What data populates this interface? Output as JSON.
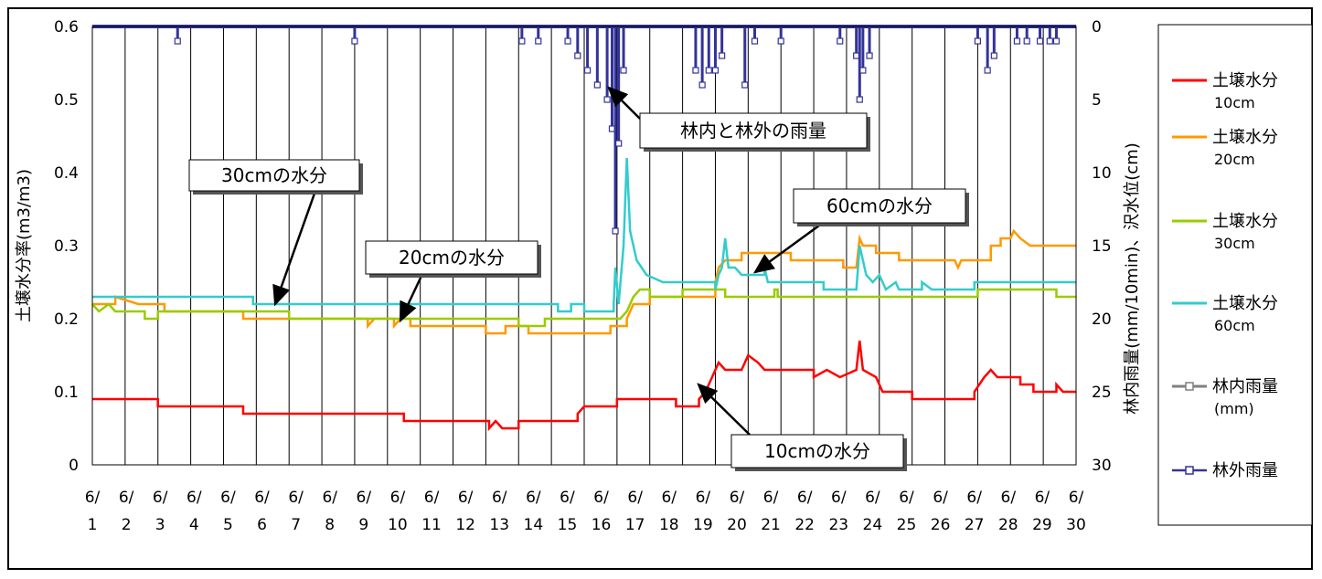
{
  "chart_data": {
    "type": "line",
    "ylabel_left": "土壌水分率(m3/m3)",
    "ylabel_right": "林内雨量(mm/10min)、沢水位(cm)",
    "ylim_left": [
      0,
      0.6
    ],
    "ylim_right_inverted": [
      0,
      30
    ],
    "yticks_left": [
      "0.6",
      "0.5",
      "0.4",
      "0.3",
      "0.2",
      "0.1",
      "0"
    ],
    "yticks_right": [
      "0",
      "5",
      "10",
      "15",
      "20",
      "25",
      "30"
    ],
    "xticks_top": [
      "6/",
      "6/",
      "6/",
      "6/",
      "6/",
      "6/",
      "6/",
      "6/",
      "6/",
      "6/",
      "6/",
      "6/",
      "6/",
      "6/",
      "6/",
      "6/",
      "6/",
      "6/",
      "6/",
      "6/",
      "6/",
      "6/",
      "6/",
      "6/",
      "6/",
      "6/",
      "6/",
      "6/",
      "6/",
      "6/"
    ],
    "xticks_bottom": [
      "1",
      "2",
      "3",
      "4",
      "5",
      "6",
      "7",
      "8",
      "9",
      "10",
      "11",
      "12",
      "13",
      "14",
      "15",
      "16",
      "17",
      "18",
      "19",
      "20",
      "21",
      "22",
      "23",
      "24",
      "25",
      "26",
      "27",
      "28",
      "29",
      "30"
    ],
    "grid": "vertical",
    "legend_position": "right",
    "series": [
      {
        "name": "土壌水分",
        "sub": "10cm",
        "color": "#ff0000",
        "points": [
          [
            1,
            0.09
          ],
          [
            3,
            0.09
          ],
          [
            3,
            0.08
          ],
          [
            5.6,
            0.08
          ],
          [
            5.6,
            0.07
          ],
          [
            10.5,
            0.07
          ],
          [
            10.5,
            0.06
          ],
          [
            13.1,
            0.06
          ],
          [
            13.1,
            0.05
          ],
          [
            13.3,
            0.06
          ],
          [
            13.5,
            0.05
          ],
          [
            14,
            0.05
          ],
          [
            14,
            0.06
          ],
          [
            15.8,
            0.06
          ],
          [
            15.8,
            0.07
          ],
          [
            16,
            0.08
          ],
          [
            17,
            0.08
          ],
          [
            17,
            0.09
          ],
          [
            18.8,
            0.09
          ],
          [
            18.8,
            0.08
          ],
          [
            19.5,
            0.08
          ],
          [
            19.5,
            0.09
          ],
          [
            19.7,
            0.1
          ],
          [
            19.9,
            0.12
          ],
          [
            20.1,
            0.14
          ],
          [
            20.3,
            0.13
          ],
          [
            20.8,
            0.13
          ],
          [
            21,
            0.15
          ],
          [
            21.3,
            0.14
          ],
          [
            21.5,
            0.13
          ],
          [
            23,
            0.13
          ],
          [
            23,
            0.12
          ],
          [
            23.4,
            0.13
          ],
          [
            23.8,
            0.12
          ],
          [
            24.3,
            0.13
          ],
          [
            24.4,
            0.17
          ],
          [
            24.5,
            0.13
          ],
          [
            24.9,
            0.12
          ],
          [
            25.1,
            0.1
          ],
          [
            26,
            0.1
          ],
          [
            26,
            0.09
          ],
          [
            27.9,
            0.09
          ],
          [
            27.9,
            0.1
          ],
          [
            28.2,
            0.12
          ],
          [
            28.4,
            0.13
          ],
          [
            28.6,
            0.12
          ],
          [
            29.3,
            0.12
          ],
          [
            29.3,
            0.11
          ],
          [
            29.7,
            0.11
          ],
          [
            29.7,
            0.1
          ],
          [
            30.4,
            0.1
          ],
          [
            30.4,
            0.11
          ],
          [
            30.6,
            0.1
          ],
          [
            31,
            0.1
          ]
        ]
      },
      {
        "name": "土壌水分",
        "sub": "20cm",
        "color": "#ff9900",
        "points": [
          [
            1,
            0.22
          ],
          [
            1.7,
            0.22
          ],
          [
            1.7,
            0.23
          ],
          [
            2.4,
            0.22
          ],
          [
            3.2,
            0.22
          ],
          [
            3.2,
            0.21
          ],
          [
            5.6,
            0.21
          ],
          [
            5.6,
            0.2
          ],
          [
            9.4,
            0.2
          ],
          [
            9.4,
            0.19
          ],
          [
            9.6,
            0.2
          ],
          [
            10.2,
            0.2
          ],
          [
            10.2,
            0.19
          ],
          [
            10.4,
            0.2
          ],
          [
            10.7,
            0.2
          ],
          [
            10.7,
            0.19
          ],
          [
            13,
            0.19
          ],
          [
            13,
            0.18
          ],
          [
            13.6,
            0.18
          ],
          [
            13.6,
            0.19
          ],
          [
            14.3,
            0.19
          ],
          [
            14.3,
            0.18
          ],
          [
            16.8,
            0.18
          ],
          [
            16.8,
            0.19
          ],
          [
            17.3,
            0.19
          ],
          [
            17.3,
            0.2
          ],
          [
            17.5,
            0.22
          ],
          [
            18,
            0.22
          ],
          [
            18,
            0.23
          ],
          [
            20,
            0.23
          ],
          [
            20,
            0.25
          ],
          [
            20.1,
            0.27
          ],
          [
            20.3,
            0.28
          ],
          [
            20.8,
            0.28
          ],
          [
            20.8,
            0.29
          ],
          [
            22.3,
            0.29
          ],
          [
            22.3,
            0.28
          ],
          [
            23.9,
            0.28
          ],
          [
            23.9,
            0.27
          ],
          [
            24.3,
            0.27
          ],
          [
            24.4,
            0.31
          ],
          [
            24.5,
            0.3
          ],
          [
            24.9,
            0.3
          ],
          [
            24.9,
            0.29
          ],
          [
            25.6,
            0.29
          ],
          [
            25.6,
            0.28
          ],
          [
            27.3,
            0.28
          ],
          [
            27.4,
            0.27
          ],
          [
            27.5,
            0.28
          ],
          [
            28.4,
            0.28
          ],
          [
            28.4,
            0.3
          ],
          [
            28.7,
            0.3
          ],
          [
            28.7,
            0.31
          ],
          [
            29,
            0.31
          ],
          [
            29.1,
            0.32
          ],
          [
            29.3,
            0.31
          ],
          [
            29.6,
            0.3
          ],
          [
            31,
            0.3
          ]
        ]
      },
      {
        "name": "土壌水分",
        "sub": "30cm",
        "color": "#99cc00",
        "points": [
          [
            1,
            0.22
          ],
          [
            1.2,
            0.21
          ],
          [
            1.5,
            0.22
          ],
          [
            1.7,
            0.21
          ],
          [
            2.6,
            0.21
          ],
          [
            2.6,
            0.2
          ],
          [
            3,
            0.2
          ],
          [
            3,
            0.21
          ],
          [
            7,
            0.21
          ],
          [
            7,
            0.2
          ],
          [
            14,
            0.2
          ],
          [
            14,
            0.19
          ],
          [
            14.8,
            0.19
          ],
          [
            14.8,
            0.2
          ],
          [
            17.1,
            0.2
          ],
          [
            17.3,
            0.21
          ],
          [
            17.5,
            0.23
          ],
          [
            17.7,
            0.24
          ],
          [
            18,
            0.24
          ],
          [
            18,
            0.23
          ],
          [
            19,
            0.23
          ],
          [
            19,
            0.24
          ],
          [
            20.3,
            0.24
          ],
          [
            20.3,
            0.23
          ],
          [
            21.8,
            0.23
          ],
          [
            21.8,
            0.24
          ],
          [
            21.9,
            0.24
          ],
          [
            21.9,
            0.23
          ],
          [
            28,
            0.23
          ],
          [
            28,
            0.24
          ],
          [
            30.4,
            0.24
          ],
          [
            30.4,
            0.23
          ],
          [
            31,
            0.23
          ]
        ]
      },
      {
        "name": "土壌水分",
        "sub": "60cm",
        "color": "#33cccc",
        "points": [
          [
            1,
            0.23
          ],
          [
            5.9,
            0.23
          ],
          [
            5.9,
            0.22
          ],
          [
            15.2,
            0.22
          ],
          [
            15.2,
            0.21
          ],
          [
            15.6,
            0.21
          ],
          [
            15.6,
            0.22
          ],
          [
            16,
            0.22
          ],
          [
            16,
            0.21
          ],
          [
            16.9,
            0.21
          ],
          [
            16.9,
            0.22
          ],
          [
            16.95,
            0.27
          ],
          [
            17.05,
            0.22
          ],
          [
            17.2,
            0.3
          ],
          [
            17.3,
            0.42
          ],
          [
            17.4,
            0.32
          ],
          [
            17.6,
            0.28
          ],
          [
            17.9,
            0.26
          ],
          [
            18.4,
            0.25
          ],
          [
            20,
            0.25
          ],
          [
            20,
            0.24
          ],
          [
            20.1,
            0.26
          ],
          [
            20.2,
            0.27
          ],
          [
            20.3,
            0.31
          ],
          [
            20.4,
            0.27
          ],
          [
            20.6,
            0.27
          ],
          [
            20.8,
            0.26
          ],
          [
            21.5,
            0.26
          ],
          [
            21.5,
            0.27
          ],
          [
            21.6,
            0.25
          ],
          [
            23.3,
            0.25
          ],
          [
            23.3,
            0.24
          ],
          [
            24.3,
            0.24
          ],
          [
            24.4,
            0.3
          ],
          [
            24.6,
            0.26
          ],
          [
            24.8,
            0.25
          ],
          [
            25,
            0.26
          ],
          [
            25.2,
            0.24
          ],
          [
            25.5,
            0.25
          ],
          [
            25.6,
            0.24
          ],
          [
            26.3,
            0.24
          ],
          [
            26.3,
            0.25
          ],
          [
            26.6,
            0.24
          ],
          [
            27.9,
            0.24
          ],
          [
            27.9,
            0.25
          ],
          [
            31,
            0.25
          ]
        ]
      },
      {
        "name": "林内雨量",
        "sub": "(mm)",
        "color": "#808080",
        "points": []
      },
      {
        "name": "林外雨量",
        "sub": "",
        "color": "#333399",
        "spikes": [
          [
            3.6,
            1
          ],
          [
            9.0,
            1
          ],
          [
            14.1,
            1
          ],
          [
            14.6,
            1
          ],
          [
            15.5,
            1
          ],
          [
            15.8,
            2
          ],
          [
            16.1,
            3
          ],
          [
            16.4,
            4
          ],
          [
            16.7,
            5
          ],
          [
            16.85,
            7
          ],
          [
            16.95,
            14
          ],
          [
            17.05,
            8
          ],
          [
            17.2,
            3
          ],
          [
            19.4,
            3
          ],
          [
            19.6,
            4
          ],
          [
            19.8,
            3
          ],
          [
            20.0,
            3
          ],
          [
            20.2,
            2
          ],
          [
            20.9,
            4
          ],
          [
            21.2,
            1
          ],
          [
            22.0,
            1
          ],
          [
            23.8,
            1
          ],
          [
            24.3,
            2
          ],
          [
            24.4,
            5
          ],
          [
            24.5,
            3
          ],
          [
            24.7,
            2
          ],
          [
            28.0,
            1
          ],
          [
            28.3,
            3
          ],
          [
            28.5,
            2
          ],
          [
            29.2,
            1
          ],
          [
            29.5,
            1
          ],
          [
            29.9,
            1
          ],
          [
            30.2,
            1
          ],
          [
            30.4,
            1
          ]
        ]
      }
    ],
    "annotations": [
      "林内と林外の雨量",
      "30cmの水分",
      "20cmの水分",
      "60cmの水分",
      "10cmの水分"
    ]
  }
}
